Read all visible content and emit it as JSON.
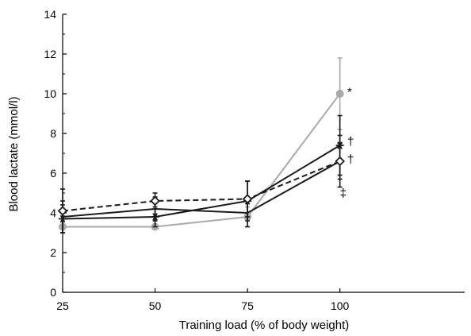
{
  "chart_data": {
    "type": "line",
    "xlabel": "Training load (% of body weight)",
    "ylabel": "Blood lactate (mmol/l)",
    "ylim": [
      0,
      14
    ],
    "xlim": [
      0,
      4.35
    ],
    "categories": [
      "25",
      "50",
      "75",
      "100"
    ],
    "yticks": [
      0,
      2,
      4,
      6,
      8,
      10,
      12,
      14
    ],
    "grid": false,
    "series": [
      {
        "key": "gray-circle",
        "color": "#a9a9a9",
        "dash": false,
        "marker": "circle",
        "values": [
          3.3,
          3.3,
          3.8,
          10.0
        ],
        "err": [
          0,
          0,
          0.5,
          1.8
        ]
      },
      {
        "key": "black-solid-star",
        "color": "#1a1a1a",
        "dash": false,
        "marker": "star",
        "values": [
          3.7,
          3.8,
          4.6,
          7.4
        ],
        "err": [
          0.7,
          0.5,
          1.0,
          1.5
        ]
      },
      {
        "key": "black-solid-plain",
        "color": "#1a1a1a",
        "dash": false,
        "marker": "none",
        "values": [
          3.8,
          4.2,
          4.0,
          6.6
        ],
        "err": [
          0.8,
          0.6,
          0.7,
          1.3
        ]
      },
      {
        "key": "black-dashed-diamond",
        "color": "#1a1a1a",
        "dash": true,
        "marker": "diamond",
        "values": [
          4.1,
          4.6,
          4.7,
          6.6
        ],
        "err": [
          1.1,
          0.4,
          0.9,
          0.9
        ]
      }
    ],
    "annotations": [
      {
        "text": "*",
        "x": 3.08,
        "y": 10.1
      },
      {
        "text": "†",
        "x": 3.08,
        "y": 7.6
      },
      {
        "text": "†",
        "x": 3.08,
        "y": 6.7
      },
      {
        "text": "‡",
        "x": 3.0,
        "y": 5.0
      }
    ]
  }
}
